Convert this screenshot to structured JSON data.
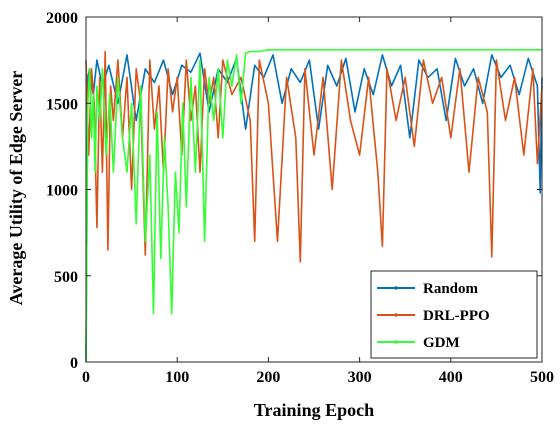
{
  "chart_data": {
    "type": "line",
    "title": "",
    "xlabel": "Training Epoch",
    "ylabel": "Average Utility of Edge Server",
    "xlim": [
      0,
      500
    ],
    "ylim": [
      0,
      2000
    ],
    "xticks": [
      0,
      100,
      200,
      300,
      400,
      500
    ],
    "yticks": [
      0,
      500,
      1000,
      1500,
      2000
    ],
    "grid": false,
    "legend_position": "bottom-right",
    "series": [
      {
        "name": "Random",
        "color": "#0072BD",
        "x": [
          0,
          2,
          4,
          8,
          12,
          18,
          25,
          35,
          45,
          55,
          65,
          75,
          85,
          95,
          105,
          115,
          125,
          135,
          145,
          155,
          165,
          175,
          185,
          195,
          205,
          215,
          225,
          235,
          245,
          255,
          265,
          275,
          285,
          295,
          305,
          315,
          325,
          335,
          345,
          355,
          365,
          375,
          385,
          395,
          405,
          415,
          425,
          435,
          445,
          455,
          465,
          475,
          485,
          495,
          498,
          500
        ],
        "values": [
          0,
          1650,
          1700,
          1550,
          1750,
          1600,
          1720,
          1500,
          1780,
          1400,
          1700,
          1620,
          1750,
          1550,
          1720,
          1680,
          1790,
          1450,
          1700,
          1620,
          1760,
          1350,
          1720,
          1650,
          1780,
          1500,
          1700,
          1620,
          1750,
          1350,
          1720,
          1600,
          1760,
          1450,
          1700,
          1550,
          1780,
          1600,
          1720,
          1300,
          1750,
          1650,
          1700,
          1400,
          1760,
          1600,
          1700,
          1500,
          1780,
          1650,
          1720,
          1550,
          1760,
          1600,
          980,
          1650
        ]
      },
      {
        "name": "DRL-PPO",
        "color": "#D95319",
        "x": [
          0,
          3,
          6,
          9,
          12,
          15,
          18,
          21,
          24,
          27,
          30,
          35,
          40,
          45,
          50,
          55,
          60,
          65,
          70,
          75,
          80,
          85,
          90,
          95,
          100,
          105,
          110,
          115,
          120,
          125,
          130,
          135,
          140,
          145,
          150,
          160,
          170,
          180,
          185,
          190,
          200,
          210,
          220,
          230,
          235,
          240,
          250,
          260,
          270,
          280,
          290,
          300,
          310,
          320,
          325,
          330,
          340,
          350,
          360,
          370,
          380,
          390,
          400,
          410,
          420,
          430,
          440,
          445,
          450,
          460,
          470,
          480,
          490,
          495,
          500
        ],
        "values": [
          1750,
          1200,
          1700,
          1500,
          780,
          1650,
          1100,
          1800,
          650,
          1600,
          1400,
          1750,
          1300,
          1650,
          1000,
          1700,
          1500,
          620,
          1750,
          1350,
          1600,
          1100,
          1700,
          1450,
          1650,
          1200,
          1750,
          1400,
          1600,
          1100,
          1700,
          1500,
          1650,
          1300,
          1750,
          1550,
          1650,
          1400,
          700,
          1750,
          1500,
          700,
          1650,
          1300,
          580,
          1700,
          1200,
          1650,
          1000,
          1750,
          1400,
          1200,
          1650,
          1100,
          670,
          1700,
          1400,
          1650,
          1250,
          1750,
          1500,
          1650,
          1300,
          1700,
          1100,
          1650,
          1450,
          610,
          1750,
          1400,
          1650,
          1200,
          1700,
          1150,
          1600
        ]
      },
      {
        "name": "GDM",
        "color": "#33FF33",
        "x": [
          0,
          2,
          4,
          6,
          8,
          10,
          12,
          15,
          18,
          22,
          26,
          30,
          35,
          40,
          45,
          50,
          55,
          60,
          65,
          70,
          74,
          78,
          82,
          86,
          90,
          94,
          98,
          102,
          106,
          110,
          115,
          120,
          125,
          130,
          135,
          140,
          145,
          150,
          155,
          160,
          165,
          170,
          175,
          180,
          190,
          200,
          250,
          300,
          350,
          400,
          450,
          500
        ],
        "values": [
          0,
          1500,
          1700,
          1300,
          1550,
          1100,
          1600,
          1400,
          1700,
          1200,
          1550,
          1100,
          1650,
          1300,
          1100,
          1500,
          800,
          1600,
          700,
          1200,
          280,
          1450,
          600,
          1300,
          900,
          280,
          1100,
          750,
          1500,
          900,
          1650,
          1100,
          1750,
          700,
          1650,
          1400,
          1700,
          1300,
          1750,
          1600,
          1780,
          1500,
          1790,
          1800,
          1800,
          1810,
          1810,
          1810,
          1810,
          1810,
          1810,
          1810
        ]
      }
    ]
  }
}
